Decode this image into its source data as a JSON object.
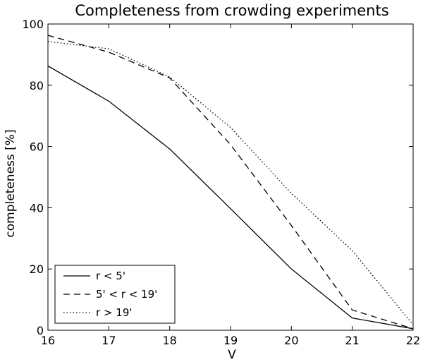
{
  "chart_data": {
    "type": "line",
    "title": "Completeness from crowding experiments",
    "xlabel": "V",
    "ylabel": "completeness [%]",
    "xlim": [
      16,
      22
    ],
    "ylim": [
      0,
      100
    ],
    "xticks": [
      16,
      17,
      18,
      19,
      20,
      21,
      22
    ],
    "yticks": [
      0,
      20,
      40,
      60,
      80,
      100
    ],
    "x": [
      16,
      17,
      18,
      19,
      20,
      21,
      22
    ],
    "series": [
      {
        "name": "r < 5'",
        "style": "solid",
        "values": [
          86.3,
          74.8,
          59.2,
          39.7,
          20.0,
          4.0,
          0.5
        ]
      },
      {
        "name": "5' < r < 19'",
        "style": "dashed",
        "values": [
          96.3,
          90.8,
          82.4,
          60.6,
          34.2,
          6.6,
          0.5
        ]
      },
      {
        "name": "r > 19'",
        "style": "dotted",
        "values": [
          94.3,
          91.9,
          82.7,
          66.2,
          44.7,
          26.0,
          1.8
        ]
      }
    ],
    "legend_position": "bottom-left",
    "grid": false,
    "line_color": "#000000"
  }
}
